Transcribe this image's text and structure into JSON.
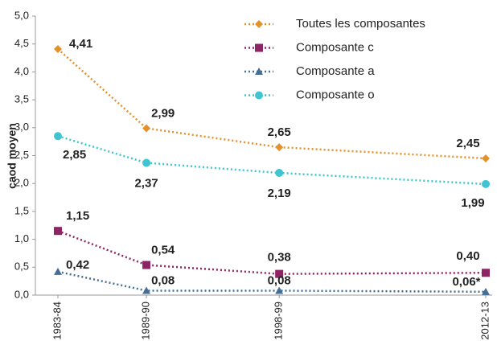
{
  "chart_data": {
    "type": "line",
    "y_label": "caod moyen",
    "categories": [
      "1983-84",
      "1989-90",
      "1998-99",
      "2012-13"
    ],
    "series": [
      {
        "name": "Toutes les composantes",
        "color": "#e3912b",
        "marker": "diamond",
        "values": [
          4.41,
          2.99,
          2.65,
          2.45
        ],
        "value_labels": [
          "4,41",
          "2,99",
          "2,65",
          "2,45"
        ]
      },
      {
        "name": "Composante c",
        "color": "#8e2463",
        "marker": "square",
        "values": [
          1.15,
          0.54,
          0.38,
          0.4
        ],
        "value_labels": [
          "1,15",
          "0,54",
          "0,38",
          "0,40"
        ]
      },
      {
        "name": "Composante a",
        "color": "#456e96",
        "marker": "triangle",
        "values": [
          0.42,
          0.08,
          0.08,
          0.06
        ],
        "value_labels": [
          "0,42",
          "0,08",
          "0,08",
          "0,06*"
        ]
      },
      {
        "name": "Composante o",
        "color": "#3fc5d1",
        "marker": "circle",
        "values": [
          2.85,
          2.37,
          2.19,
          1.99
        ],
        "value_labels": [
          "2,85",
          "2,37",
          "2,19",
          "1,99"
        ]
      }
    ],
    "ylim": [
      0,
      5
    ],
    "yticks": [
      {
        "value": 0,
        "label": "0,0"
      },
      {
        "value": 0.5,
        "label": "0,5"
      },
      {
        "value": 1,
        "label": "1,0"
      },
      {
        "value": 1.5,
        "label": "1,5"
      },
      {
        "value": 2,
        "label": "2,0"
      },
      {
        "value": 2.5,
        "label": "2,5"
      },
      {
        "value": 3,
        "label": "3,0"
      },
      {
        "value": 3.5,
        "label": "3,5"
      },
      {
        "value": 4,
        "label": "4,0"
      },
      {
        "value": 4.5,
        "label": "4,5"
      },
      {
        "value": 5,
        "label": "5,0"
      }
    ],
    "grid": false,
    "legend": "top-right"
  }
}
